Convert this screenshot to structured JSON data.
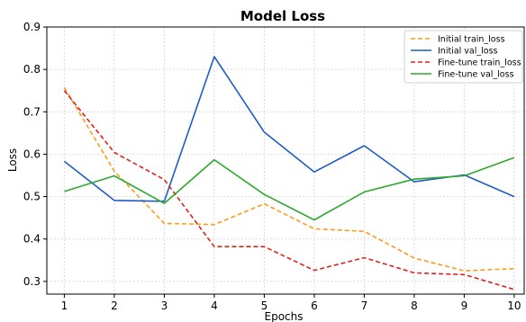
{
  "chart_data": {
    "type": "line",
    "title": "Model Loss",
    "xlabel": "Epochs",
    "ylabel": "Loss",
    "x": [
      1,
      2,
      3,
      4,
      5,
      6,
      7,
      8,
      9,
      10
    ],
    "xlim": [
      0.65,
      10.2
    ],
    "ylim": [
      0.27,
      0.9
    ],
    "xticks": [
      1,
      2,
      3,
      4,
      5,
      6,
      7,
      8,
      9,
      10
    ],
    "yticks": [
      0.3,
      0.4,
      0.5,
      0.6,
      0.7,
      0.8,
      0.9
    ],
    "grid": true,
    "legend_position": "top-right",
    "series": [
      {
        "name": "Initial train_loss",
        "color": "#ff9a1f",
        "dash": "dashed",
        "values": [
          0.757,
          0.56,
          0.437,
          0.434,
          0.483,
          0.424,
          0.418,
          0.355,
          0.325,
          0.33
        ]
      },
      {
        "name": "Initial val_loss",
        "color": "#1f5bc6",
        "dash": "solid",
        "values": [
          0.583,
          0.491,
          0.489,
          0.83,
          0.652,
          0.558,
          0.62,
          0.535,
          0.551,
          0.5
        ]
      },
      {
        "name": "Fine-tune train_loss",
        "color": "#e0201b",
        "dash": "dashed",
        "values": [
          0.75,
          0.604,
          0.54,
          0.382,
          0.382,
          0.326,
          0.356,
          0.32,
          0.316,
          0.281
        ]
      },
      {
        "name": "Fine-tune val_loss",
        "color": "#2ea82e",
        "dash": "solid",
        "values": [
          0.512,
          0.549,
          0.484,
          0.587,
          0.505,
          0.445,
          0.511,
          0.541,
          0.549,
          0.592
        ]
      }
    ]
  }
}
